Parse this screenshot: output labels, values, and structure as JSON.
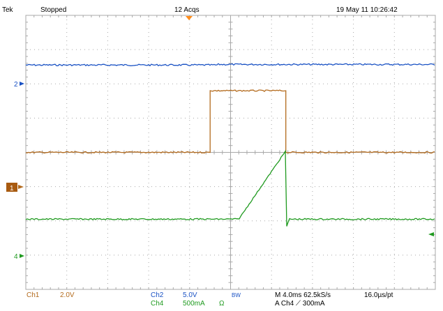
{
  "header": {
    "brand": "Tek",
    "run_state": "Stopped",
    "acquisitions": "12 Acqs",
    "datetime": "19 May 11 10:26:42"
  },
  "channel_markers": {
    "ch2": "2",
    "ch1": "1",
    "ch4": "4"
  },
  "footer": {
    "ch1_label": "Ch1",
    "ch1_scale": "2.0V",
    "ch2_label": "Ch2",
    "ch2_scale": "5.0V",
    "bw_label": "BW",
    "ch4_label": "Ch4",
    "ch4_scale": "500mA",
    "ch4_coupling": "Ω",
    "timebase": "M 4.0ms 62.5kS/s",
    "record": "16.0µs/pt",
    "trigger": "A  Ch4  ⟋  300mA"
  },
  "colors": {
    "grid": "#a8a8a8",
    "ch1": "#b36a1c",
    "ch2": "#1a52c4",
    "ch4": "#1f9a1f",
    "trigger_marker": "#ff8c1a"
  },
  "waveforms": {
    "ch2": {
      "description_level": "flat high",
      "level_div": 2.55
    },
    "ch1": {
      "base_level_div": 0.0,
      "pulse_level_div": 1.8,
      "pulse_start_div": 4.5,
      "pulse_end_div": 6.35
    },
    "ch4": {
      "base_level_div": -1.95,
      "ramp_start_div": 5.2,
      "ramp_end_div": 6.35,
      "ramp_peak_div": 0.05
    }
  }
}
